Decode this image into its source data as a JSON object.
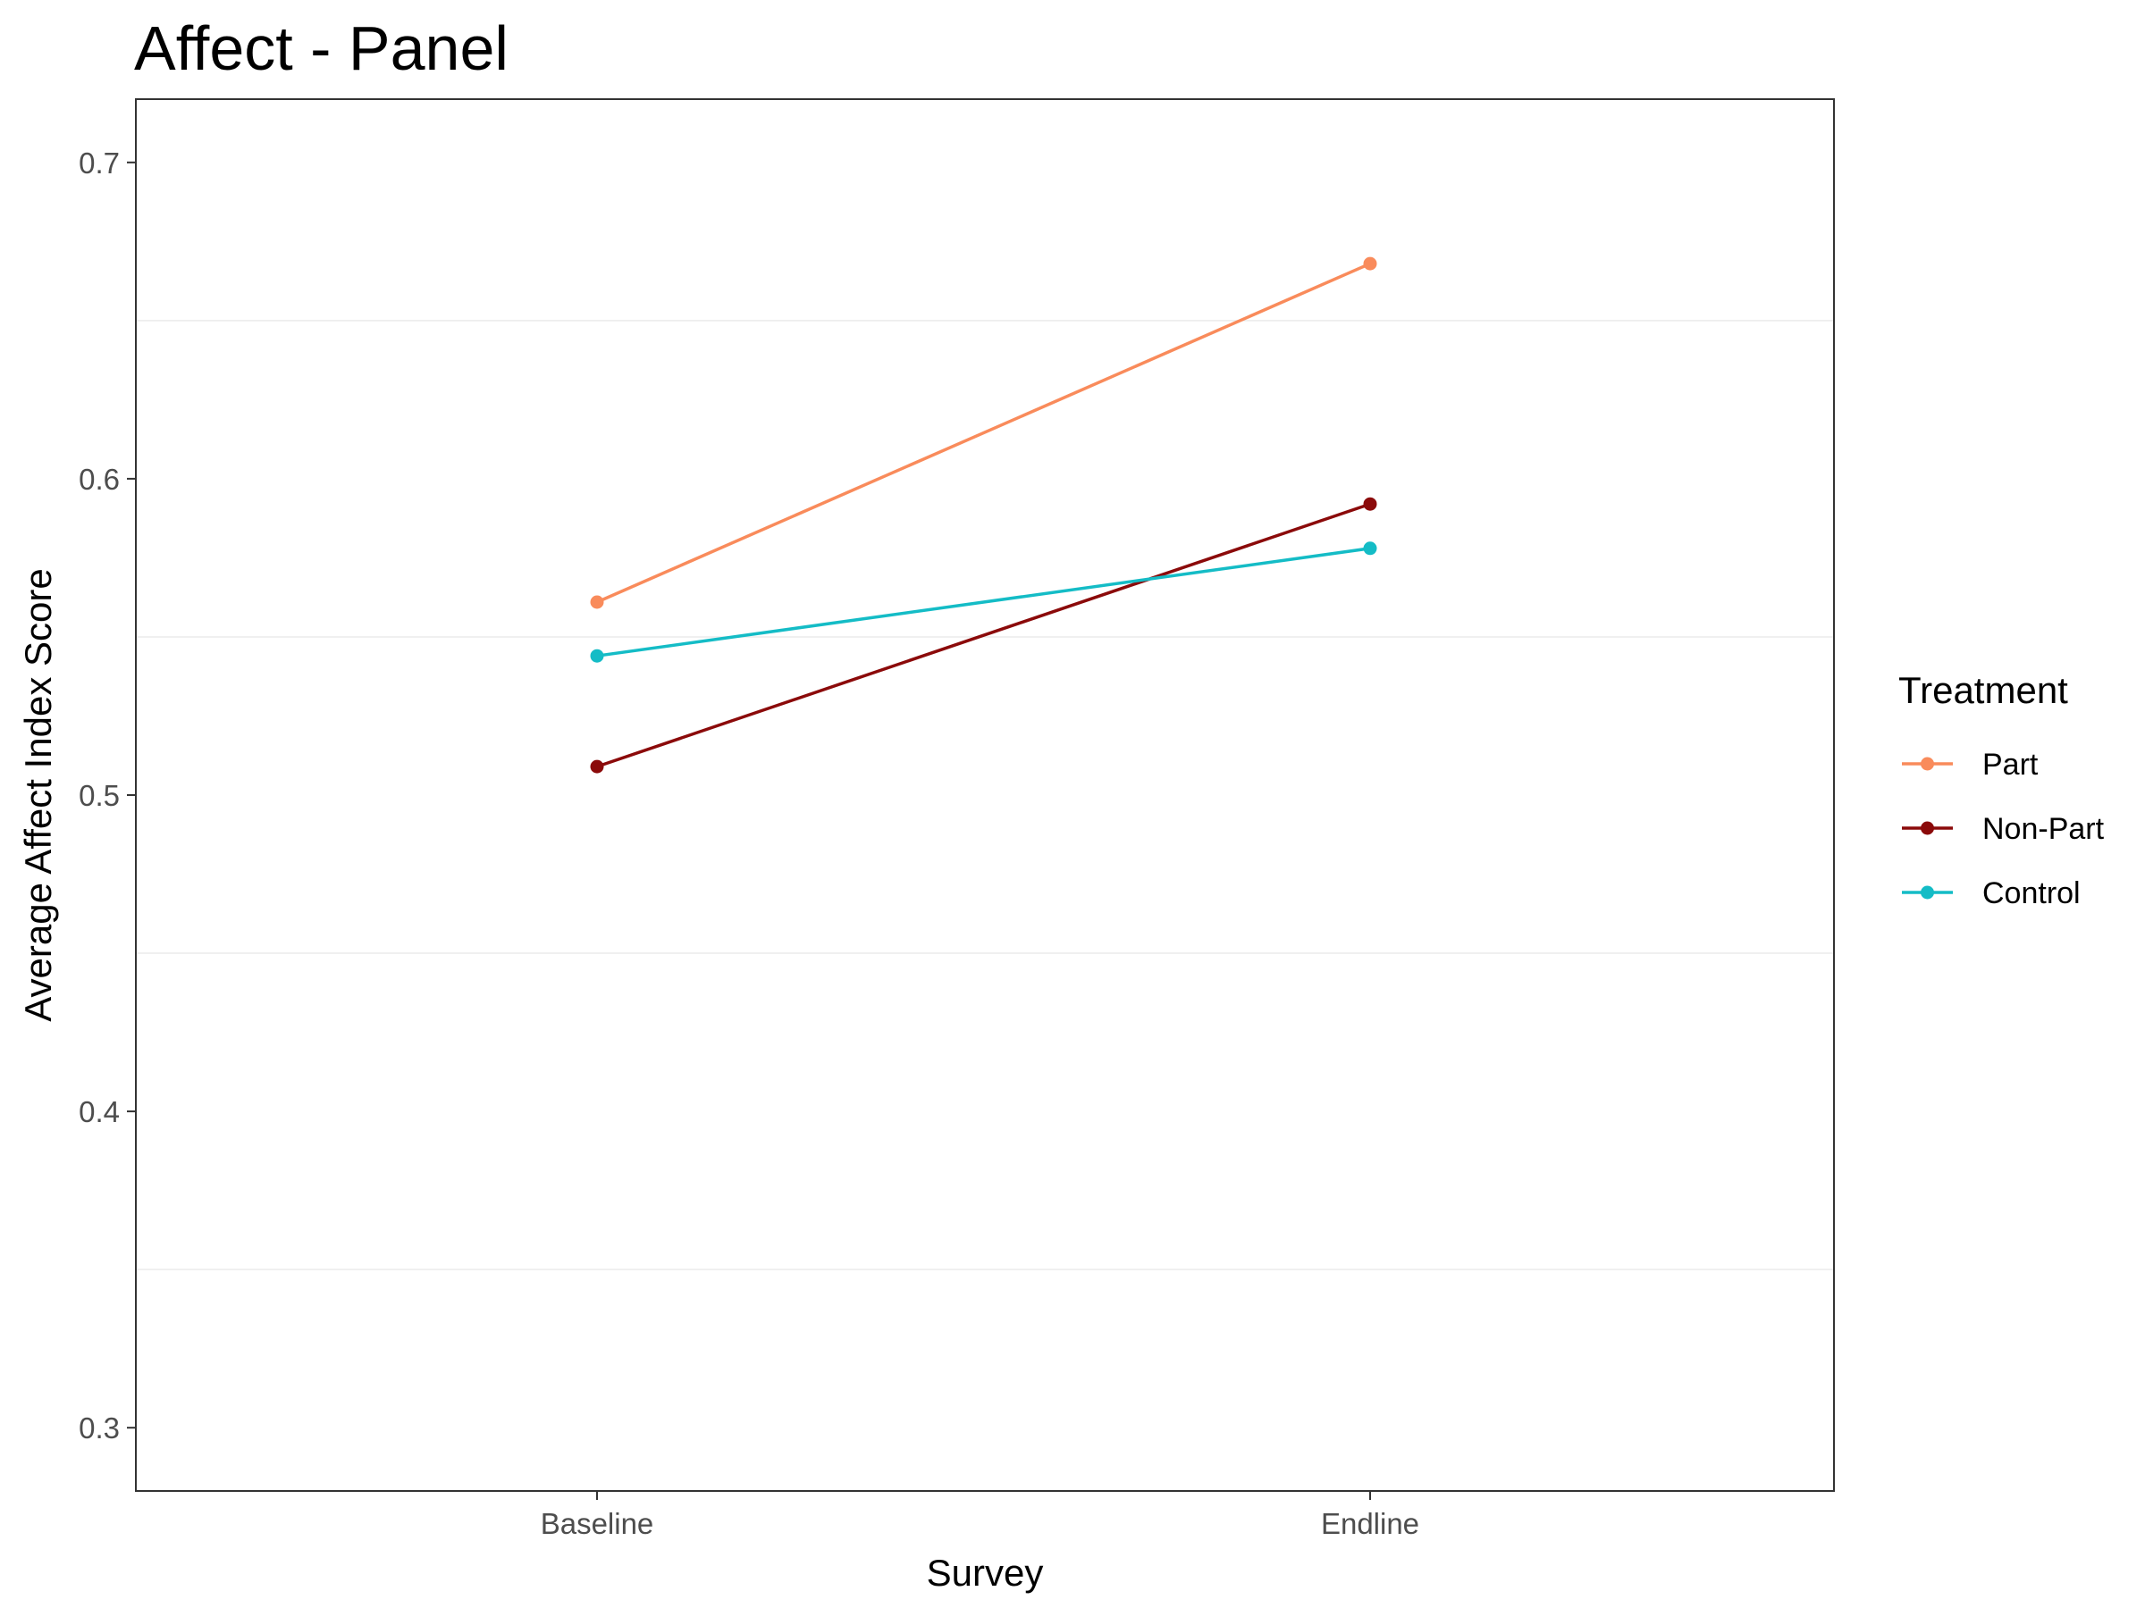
{
  "chart_data": {
    "type": "line",
    "title": "Affect - Panel",
    "xlabel": "Survey",
    "ylabel": "Average Affect Index Score",
    "categories": [
      "Baseline",
      "Endline"
    ],
    "ylim": [
      0.28,
      0.72
    ],
    "yticks": [
      0.3,
      0.4,
      0.5,
      0.6,
      0.7
    ],
    "ytick_labels": [
      "0.3",
      "0.4",
      "0.5",
      "0.6",
      "0.7"
    ],
    "minor_gridlines": [
      0.35,
      0.45,
      0.55,
      0.65
    ],
    "grid": "horizontal minor only",
    "legend": {
      "title": "Treatment",
      "position": "right"
    },
    "series": [
      {
        "name": "Part",
        "color": "#F98B5B",
        "values": [
          0.561,
          0.668
        ]
      },
      {
        "name": "Non-Part",
        "color": "#8B0A0A",
        "values": [
          0.509,
          0.592
        ]
      },
      {
        "name": "Control",
        "color": "#14BCC6",
        "values": [
          0.544,
          0.578
        ]
      }
    ]
  }
}
